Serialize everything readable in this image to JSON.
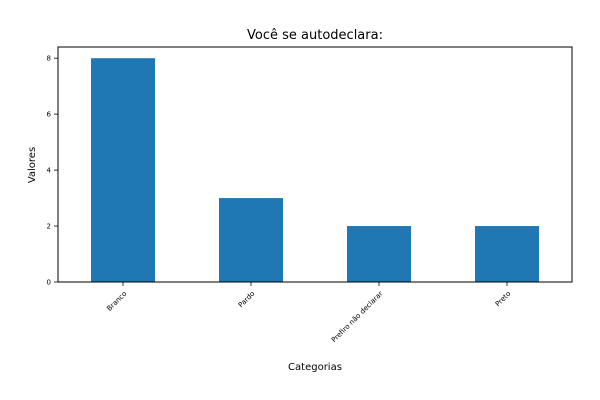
{
  "chart_data": {
    "type": "bar",
    "title": "Você se autodeclara:",
    "xlabel": "Categorias",
    "ylabel": "Valores",
    "categories": [
      "Branco",
      "Pardo",
      "Prefiro não declarar",
      "Preto"
    ],
    "values": [
      8,
      3,
      2,
      2
    ],
    "ylim": [
      0,
      8.4
    ],
    "yticks": [
      0,
      2,
      4,
      6,
      8
    ],
    "grid": false,
    "bar_color": "#1f77b4"
  }
}
